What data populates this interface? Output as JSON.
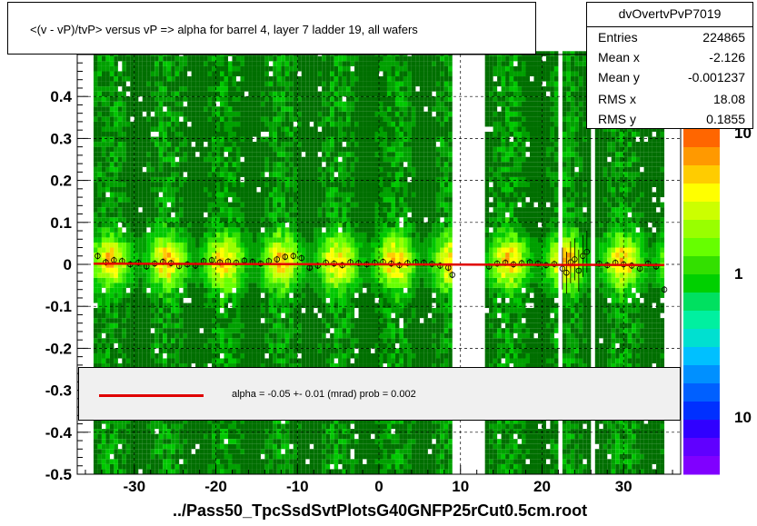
{
  "title": "<(v - vP)/tvP> versus   vP => alpha for barrel 4, layer 7 ladder 19, all wafers",
  "stats": {
    "name": "dvOvertvPvP7019",
    "rows": [
      {
        "label": "Entries",
        "value": "224865"
      },
      {
        "label": "Mean x",
        "value": "-2.126"
      },
      {
        "label": "Mean y",
        "value": "-0.001237"
      },
      {
        "label": "RMS x",
        "value": "18.08"
      },
      {
        "label": "RMS y",
        "value": "0.1855"
      }
    ]
  },
  "fit_legend": {
    "text": "alpha =   -0.05 +-  0.01 (mrad) prob = 0.002",
    "line_color": "#e00000"
  },
  "footer": "../Pass50_TpcSsdSvtPlotsG40GNFP25rCut0.5cm.root",
  "chart_data": {
    "type": "heatmap",
    "title": "<(v - vP)/tvP> versus   vP => alpha for barrel 4, layer 7 ladder 19, all wafers",
    "xlim": [
      -37,
      37
    ],
    "ylim": [
      -0.5,
      0.5
    ],
    "x_ticks": [
      -30,
      -20,
      -10,
      0,
      10,
      20,
      30
    ],
    "x_tick_labels": [
      "-30",
      "-20",
      "-10",
      "0",
      "10",
      "20",
      "30"
    ],
    "y_ticks": [
      -0.5,
      -0.4,
      -0.3,
      -0.2,
      -0.1,
      0,
      0.1,
      0.2,
      0.3,
      0.4
    ],
    "y_tick_labels": [
      "-0.5",
      "-0.4",
      "-0.3",
      "-0.2",
      "-0.1",
      "0",
      "0.1",
      "0.2",
      "0.3",
      "0.4"
    ],
    "grid": "dashed",
    "log_z": true,
    "z_ticks": [
      {
        "label": "10",
        "z": 10
      },
      {
        "label": "1",
        "z": 1
      },
      {
        "label": "10",
        "z": 0.1
      }
    ],
    "occupied_x_ranges": [
      [
        -35,
        9
      ],
      [
        13,
        22
      ],
      [
        22.5,
        26
      ],
      [
        26.5,
        35
      ]
    ],
    "fit_line": {
      "slope_mrad": -0.05,
      "intercept": 0.0,
      "color": "#e00000"
    },
    "profile_points": [
      {
        "x": -34.5,
        "y": 0.02
      },
      {
        "x": -33.5,
        "y": 0.005
      },
      {
        "x": -32.5,
        "y": 0.01
      },
      {
        "x": -31.5,
        "y": 0.008
      },
      {
        "x": -30.5,
        "y": 0.0
      },
      {
        "x": -29.5,
        "y": 0.004
      },
      {
        "x": -28.5,
        "y": -0.005
      },
      {
        "x": -27.5,
        "y": 0.002
      },
      {
        "x": -26.5,
        "y": 0.006
      },
      {
        "x": -25.5,
        "y": 0.003
      },
      {
        "x": -24.5,
        "y": -0.004
      },
      {
        "x": -23.5,
        "y": 0.0
      },
      {
        "x": -22.5,
        "y": -0.003
      },
      {
        "x": -21.5,
        "y": 0.008
      },
      {
        "x": -20.5,
        "y": 0.01
      },
      {
        "x": -19.5,
        "y": 0.005
      },
      {
        "x": -18.5,
        "y": 0.007
      },
      {
        "x": -17.5,
        "y": 0.004
      },
      {
        "x": -16.5,
        "y": 0.009
      },
      {
        "x": -15.5,
        "y": 0.006
      },
      {
        "x": -14.5,
        "y": 0.002
      },
      {
        "x": -13.5,
        "y": 0.008
      },
      {
        "x": -12.5,
        "y": 0.012
      },
      {
        "x": -11.5,
        "y": 0.018
      },
      {
        "x": -10.5,
        "y": 0.02
      },
      {
        "x": -9.5,
        "y": 0.015
      },
      {
        "x": -8.5,
        "y": -0.008
      },
      {
        "x": -7.5,
        "y": -0.003
      },
      {
        "x": -6.5,
        "y": 0.004
      },
      {
        "x": -5.5,
        "y": 0.002
      },
      {
        "x": -4.5,
        "y": -0.002
      },
      {
        "x": -3.5,
        "y": 0.005
      },
      {
        "x": -2.5,
        "y": 0.003
      },
      {
        "x": -1.5,
        "y": 0.0
      },
      {
        "x": -0.5,
        "y": 0.004
      },
      {
        "x": 0.5,
        "y": 0.006
      },
      {
        "x": 1.5,
        "y": 0.002
      },
      {
        "x": 2.5,
        "y": -0.002
      },
      {
        "x": 3.5,
        "y": 0.003
      },
      {
        "x": 4.5,
        "y": 0.005
      },
      {
        "x": 5.5,
        "y": 0.004
      },
      {
        "x": 6.5,
        "y": 0.001
      },
      {
        "x": 7.5,
        "y": -0.003
      },
      {
        "x": 8.5,
        "y": -0.008
      },
      {
        "x": 9.0,
        "y": -0.025
      },
      {
        "x": 13.5,
        "y": -0.005
      },
      {
        "x": 14.5,
        "y": 0.002
      },
      {
        "x": 15.5,
        "y": 0.004
      },
      {
        "x": 16.5,
        "y": 0.0
      },
      {
        "x": 17.5,
        "y": 0.003
      },
      {
        "x": 18.5,
        "y": 0.005
      },
      {
        "x": 19.5,
        "y": 0.002
      },
      {
        "x": 20.5,
        "y": -0.002
      },
      {
        "x": 21.5,
        "y": 0.001
      },
      {
        "x": 22.5,
        "y": -0.01
      },
      {
        "x": 23.0,
        "y": -0.02
      },
      {
        "x": 23.5,
        "y": 0.005
      },
      {
        "x": 24.0,
        "y": 0.012
      },
      {
        "x": 24.5,
        "y": -0.015
      },
      {
        "x": 25.0,
        "y": 0.02
      },
      {
        "x": 25.5,
        "y": 0.03
      },
      {
        "x": 27.0,
        "y": 0.002
      },
      {
        "x": 28.0,
        "y": -0.002
      },
      {
        "x": 29.0,
        "y": 0.004
      },
      {
        "x": 30.0,
        "y": 0.0
      },
      {
        "x": 31.0,
        "y": -0.003
      },
      {
        "x": 32.0,
        "y": -0.01
      },
      {
        "x": 33.0,
        "y": 0.002
      },
      {
        "x": 34.0,
        "y": -0.005
      },
      {
        "x": 35.0,
        "y": -0.06
      }
    ]
  }
}
